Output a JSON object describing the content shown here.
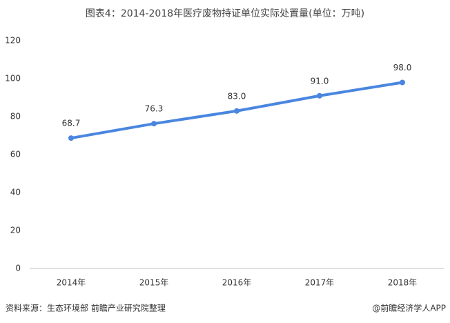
{
  "chart_data": {
    "type": "line",
    "title": "图表4：2014-2018年医疗废物持证单位实际处置量(单位：万吨)",
    "categories": [
      "2014年",
      "2015年",
      "2016年",
      "2017年",
      "2018年"
    ],
    "series": [
      {
        "name": "实际处置量",
        "color": "#4a86e0",
        "values": [
          68.7,
          76.3,
          83.0,
          91.0,
          98.0
        ],
        "value_labels": [
          "68.7",
          "76.3",
          "83.0",
          "91.0",
          "98.0"
        ]
      }
    ],
    "ylim": [
      0,
      120
    ],
    "yticks": [
      0,
      20,
      40,
      60,
      80,
      100,
      120
    ],
    "grid": false,
    "source": "资料来源：生态环境部 前瞻产业研究院整理",
    "credit": "@前瞻经济学人APP"
  }
}
